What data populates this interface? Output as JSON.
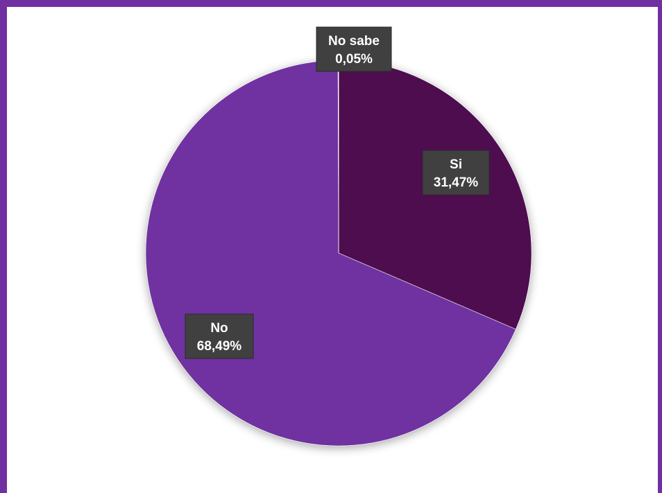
{
  "chart_data": {
    "type": "pie",
    "title": "",
    "slices": [
      {
        "name": "Si",
        "value": 31.47,
        "label": "31,47%",
        "color": "#4E1150"
      },
      {
        "name": "No",
        "value": 68.49,
        "label": "68,49%",
        "color": "#7030A0"
      },
      {
        "name": "No sabe",
        "value": 0.05,
        "label": "0,05%",
        "color": "#E8E0F0"
      }
    ],
    "border_color": "#7030A0",
    "label_box_color": "#404040",
    "legend": "none"
  }
}
